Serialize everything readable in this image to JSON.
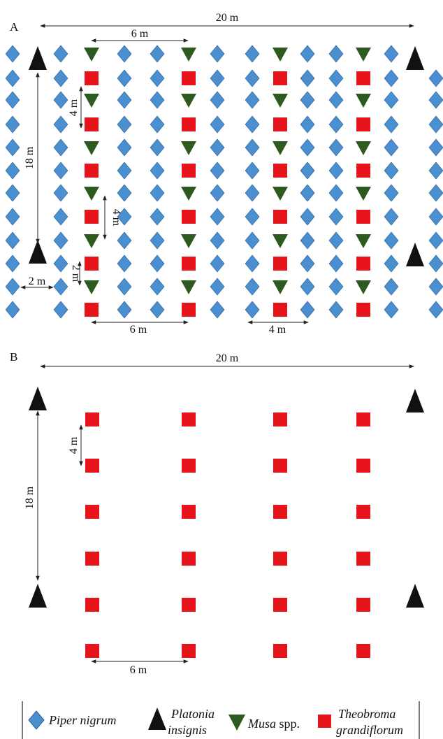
{
  "colors": {
    "piper": "#4a90d0",
    "piper_stroke": "#2b5f94",
    "platonia": "#111111",
    "musa": "#2d5a1e",
    "theobroma": "#e8141b",
    "line": "#222222"
  },
  "panelA": {
    "label": "A",
    "dims": {
      "width": "20 m",
      "musa_spacing": "6 m",
      "row_spacing_a": "4 m",
      "height": "18 m",
      "row_spacing_b": "4 m",
      "piper_row": "2 m",
      "piper_col": "2 m",
      "bottom_left": "6 m",
      "bottom_right": "4 m"
    }
  },
  "panelB": {
    "label": "B",
    "dims": {
      "width": "20 m",
      "row_spacing": "4 m",
      "height": "18 m",
      "bottom": "6 m"
    }
  },
  "legend": {
    "piper": "Piper nigrum",
    "platonia_1": "Platonia",
    "platonia_2": "insignis",
    "musa_italic": "Musa",
    "musa_rest": " spp.",
    "theobroma_1": "Theobroma",
    "theobroma_2": "grandiflorum"
  }
}
